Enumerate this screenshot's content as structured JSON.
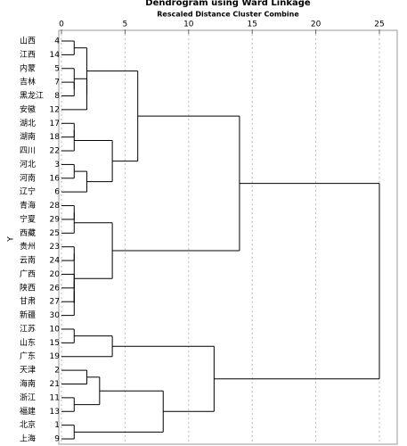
{
  "chart_data": {
    "type": "dendrogram",
    "title": "Dendrogram using Ward Linkage",
    "subtitle": "Rescaled Distance Cluster Combine",
    "ylabel": "Y",
    "xlim": [
      0,
      25
    ],
    "xticks": [
      0,
      5,
      10,
      15,
      20,
      25
    ],
    "grid": true,
    "tree": {
      "distance": 25,
      "children": [
        {
          "distance": 14,
          "children": [
            {
              "distance": 6,
              "children": [
                {
                  "distance": 2,
                  "children": [
                    {
                      "distance": 1,
                      "children": [
                        {
                          "label": "山西",
                          "case": 4
                        },
                        {
                          "label": "江西",
                          "case": 14
                        }
                      ]
                    },
                    {
                      "distance": 2,
                      "children": [
                        {
                          "distance": 1,
                          "children": [
                            {
                              "label": "内蒙",
                              "case": 5
                            },
                            {
                              "distance": 1,
                              "children": [
                                {
                                  "label": "吉林",
                                  "case": 7
                                },
                                {
                                  "label": "黑龙江",
                                  "case": 8
                                }
                              ]
                            }
                          ]
                        },
                        {
                          "label": "安徽",
                          "case": 12
                        }
                      ]
                    }
                  ]
                },
                {
                  "distance": 4,
                  "children": [
                    {
                      "distance": 1,
                      "children": [
                        {
                          "distance": 1,
                          "children": [
                            {
                              "label": "湖北",
                              "case": 17
                            },
                            {
                              "label": "湖南",
                              "case": 18
                            }
                          ]
                        },
                        {
                          "label": "四川",
                          "case": 22
                        }
                      ]
                    },
                    {
                      "distance": 2,
                      "children": [
                        {
                          "distance": 1,
                          "children": [
                            {
                              "label": "河北",
                              "case": 3
                            },
                            {
                              "label": "河南",
                              "case": 16
                            }
                          ]
                        },
                        {
                          "label": "辽宁",
                          "case": 6
                        }
                      ]
                    }
                  ]
                }
              ]
            },
            {
              "distance": 4,
              "children": [
                {
                  "distance": 1,
                  "children": [
                    {
                      "distance": 1,
                      "children": [
                        {
                          "label": "青海",
                          "case": 28
                        },
                        {
                          "label": "宁夏",
                          "case": 29
                        }
                      ]
                    },
                    {
                      "label": "西藏",
                      "case": 25
                    }
                  ]
                },
                {
                  "distance": 1,
                  "children": [
                    {
                      "distance": 1,
                      "children": [
                        {
                          "label": "贵州",
                          "case": 23
                        },
                        {
                          "label": "云南",
                          "case": 24
                        }
                      ]
                    },
                    {
                      "distance": 1,
                      "children": [
                        {
                          "distance": 1,
                          "children": [
                            {
                              "distance": 1,
                              "children": [
                                {
                                  "label": "广西",
                                  "case": 20
                                },
                                {
                                  "label": "陕西",
                                  "case": 26
                                }
                              ]
                            },
                            {
                              "label": "甘肃",
                              "case": 27
                            }
                          ]
                        },
                        {
                          "label": "新疆",
                          "case": 30
                        }
                      ]
                    }
                  ]
                }
              ]
            }
          ]
        },
        {
          "distance": 12,
          "children": [
            {
              "distance": 4,
              "children": [
                {
                  "distance": 1,
                  "children": [
                    {
                      "label": "江苏",
                      "case": 10
                    },
                    {
                      "label": "山东",
                      "case": 15
                    }
                  ]
                },
                {
                  "label": "广东",
                  "case": 19
                }
              ]
            },
            {
              "distance": 8,
              "children": [
                {
                  "distance": 3,
                  "children": [
                    {
                      "distance": 2,
                      "children": [
                        {
                          "label": "天津",
                          "case": 2
                        },
                        {
                          "label": "海南",
                          "case": 21
                        }
                      ]
                    },
                    {
                      "distance": 1,
                      "children": [
                        {
                          "label": "浙江",
                          "case": 11
                        },
                        {
                          "label": "福建",
                          "case": 13
                        }
                      ]
                    }
                  ]
                },
                {
                  "distance": 1,
                  "children": [
                    {
                      "label": "北京",
                      "case": 1
                    },
                    {
                      "label": "上海",
                      "case": 9
                    }
                  ]
                }
              ]
            }
          ]
        }
      ]
    }
  }
}
